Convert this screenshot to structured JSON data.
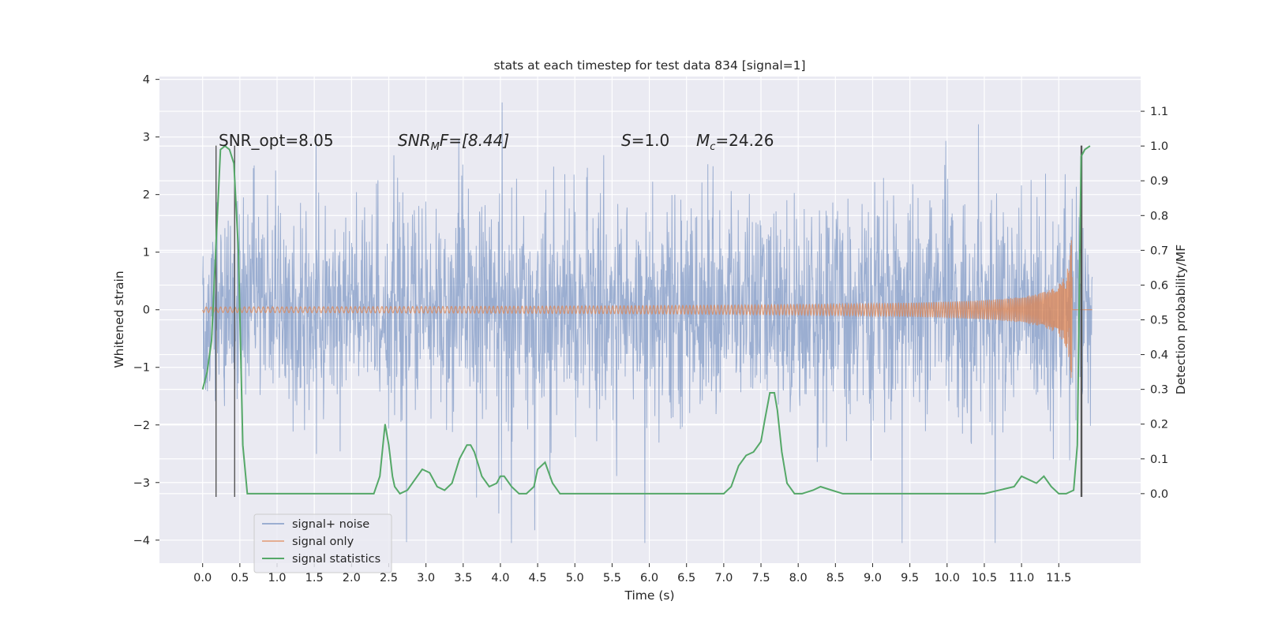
{
  "chart_data": {
    "type": "line",
    "title": "stats at each timestep for test data 834 [signal=1]",
    "xlabel": "Time (s)",
    "ylabel_left": "Whitened strain",
    "ylabel_right": "Detection probability/MF",
    "xlim": [
      -0.58,
      12.6
    ],
    "ylim_left": [
      -4.4,
      4.05
    ],
    "ylim_right": [
      -0.2,
      1.2
    ],
    "x_ticks": [
      "0.0",
      "0.5",
      "1.0",
      "1.5",
      "2.0",
      "2.5",
      "3.0",
      "3.5",
      "4.0",
      "4.5",
      "5.0",
      "5.5",
      "6.0",
      "6.5",
      "7.0",
      "7.5",
      "8.0",
      "8.5",
      "9.0",
      "9.5",
      "10.0",
      "10.5",
      "11.0",
      "11.5"
    ],
    "y_ticks_left": [
      "4",
      "3",
      "2",
      "1",
      "0",
      "−1",
      "−2",
      "−3",
      "−4"
    ],
    "y_ticks_right": [
      "1.1",
      "1.0",
      "0.9",
      "0.8",
      "0.7",
      "0.6",
      "0.5",
      "0.4",
      "0.3",
      "0.2",
      "0.1",
      "0.0"
    ],
    "grid": true,
    "legend_position": "lower-left",
    "colors": {
      "noise": "#4c72b0",
      "signal": "#dd8452",
      "stats": "#55a868",
      "vline": "#555555",
      "background": "#eaeaf2"
    },
    "annotations": {
      "snr_opt": "SNR_opt=8.05",
      "snr_mf_base": "SNR",
      "snr_mf_sub": "M",
      "snr_mf_rest": "F=[8.44]",
      "s_var": "S",
      "s_val": "=1.0",
      "mc_var": "M",
      "mc_sub": "c",
      "mc_val": "=24.26"
    },
    "series": [
      {
        "name": "signal+ noise",
        "axis": "left",
        "description_values": "noise trace spanning t=0.0 to 11.95 s, mostly within ±1.6, peaks to about 3.6 and -4.1"
      },
      {
        "name": "signal only",
        "axis": "left",
        "chirp_end": 11.68,
        "chirp_peak_amplitude": 1.6
      },
      {
        "name": "signal statistics",
        "axis": "right",
        "x": [
          0.0,
          0.06,
          0.12,
          0.18,
          0.24,
          0.3,
          0.36,
          0.42,
          0.48,
          0.54,
          0.6,
          0.65,
          0.8,
          1.5,
          2.0,
          2.3,
          2.38,
          2.45,
          2.5,
          2.55,
          2.58,
          2.65,
          2.75,
          2.85,
          2.95,
          3.05,
          3.15,
          3.25,
          3.35,
          3.45,
          3.55,
          3.6,
          3.65,
          3.75,
          3.85,
          3.95,
          4.0,
          4.05,
          4.15,
          4.25,
          4.35,
          4.45,
          4.5,
          4.6,
          4.7,
          4.8,
          5.0,
          5.5,
          5.8,
          6.0,
          6.2,
          6.6,
          7.0,
          7.1,
          7.2,
          7.3,
          7.4,
          7.5,
          7.55,
          7.62,
          7.68,
          7.72,
          7.78,
          7.85,
          7.95,
          8.05,
          8.2,
          8.3,
          8.45,
          8.6,
          8.8,
          9.0,
          9.5,
          10.0,
          10.5,
          10.9,
          11.0,
          11.1,
          11.2,
          11.3,
          11.4,
          11.5,
          11.6,
          11.7,
          11.75,
          11.8,
          11.85,
          11.92
        ],
        "y": [
          0.3,
          0.35,
          0.44,
          0.72,
          0.99,
          1.0,
          0.99,
          0.95,
          0.7,
          0.14,
          0.0,
          0.0,
          0.0,
          0.0,
          0.0,
          0.0,
          0.05,
          0.2,
          0.14,
          0.05,
          0.02,
          0.0,
          0.01,
          0.04,
          0.07,
          0.06,
          0.02,
          0.01,
          0.03,
          0.1,
          0.14,
          0.14,
          0.12,
          0.05,
          0.02,
          0.03,
          0.05,
          0.05,
          0.02,
          0.0,
          0.0,
          0.02,
          0.07,
          0.09,
          0.03,
          0.0,
          0.0,
          0.0,
          0.0,
          0.0,
          0.0,
          0.0,
          0.0,
          0.02,
          0.08,
          0.11,
          0.12,
          0.15,
          0.21,
          0.29,
          0.29,
          0.24,
          0.12,
          0.03,
          0.0,
          0.0,
          0.01,
          0.02,
          0.01,
          0.0,
          0.0,
          0.0,
          0.0,
          0.0,
          0.0,
          0.02,
          0.05,
          0.04,
          0.03,
          0.05,
          0.02,
          0.0,
          0.0,
          0.01,
          0.14,
          0.97,
          0.99,
          1.0
        ]
      }
    ],
    "vlines_left": [
      0.18,
      0.43
    ],
    "vlines_right": [
      11.8,
      11.81
    ]
  }
}
